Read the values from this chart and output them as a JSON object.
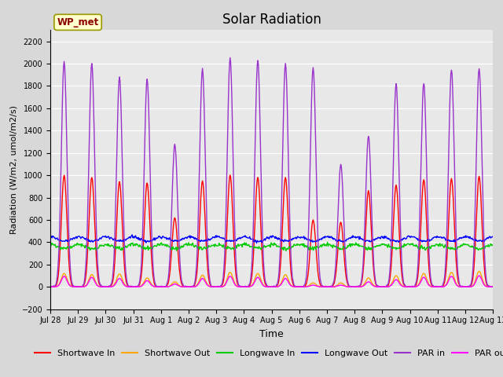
{
  "title": "Solar Radiation",
  "xlabel": "Time",
  "ylabel": "Radiation (W/m2, umol/m2/s)",
  "n_days": 16,
  "ylim": [
    -200,
    2300
  ],
  "yticks": [
    -200,
    0,
    200,
    400,
    600,
    800,
    1000,
    1200,
    1400,
    1600,
    1800,
    2000,
    2200
  ],
  "axes_bg_color": "#e8e8e8",
  "fig_bg_color": "#d8d8d8",
  "station_label": "WP_met",
  "series": {
    "shortwave_in": {
      "color": "#ff0000",
      "label": "Shortwave In",
      "lw": 1.0
    },
    "shortwave_out": {
      "color": "#ffa500",
      "label": "Shortwave Out",
      "lw": 1.0
    },
    "longwave_in": {
      "color": "#00cc00",
      "label": "Longwave In",
      "lw": 1.0
    },
    "longwave_out": {
      "color": "#0000ff",
      "label": "Longwave Out",
      "lw": 1.0
    },
    "par_in": {
      "color": "#9933cc",
      "label": "PAR in",
      "lw": 1.0
    },
    "par_out": {
      "color": "#ff00ff",
      "label": "PAR out",
      "lw": 1.0
    }
  },
  "sw_in_peaks": [
    1000,
    980,
    940,
    930,
    620,
    950,
    1000,
    980,
    980,
    600,
    580,
    860,
    910,
    960,
    970,
    990
  ],
  "sw_out_peaks": [
    120,
    110,
    115,
    80,
    45,
    105,
    130,
    120,
    110,
    35,
    35,
    80,
    100,
    120,
    130,
    140
  ],
  "par_in_peaks": [
    2020,
    2000,
    1880,
    1860,
    1280,
    1950,
    2050,
    2030,
    2000,
    1960,
    1100,
    1350,
    1820,
    1830,
    1950,
    1960
  ],
  "par_out_peaks": [
    95,
    85,
    75,
    55,
    25,
    75,
    95,
    85,
    75,
    15,
    15,
    45,
    65,
    85,
    95,
    100
  ],
  "lw_in_base": 350,
  "lw_out_base": 415,
  "legend_fontsize": 8,
  "title_fontsize": 12,
  "tick_fontsize": 7
}
